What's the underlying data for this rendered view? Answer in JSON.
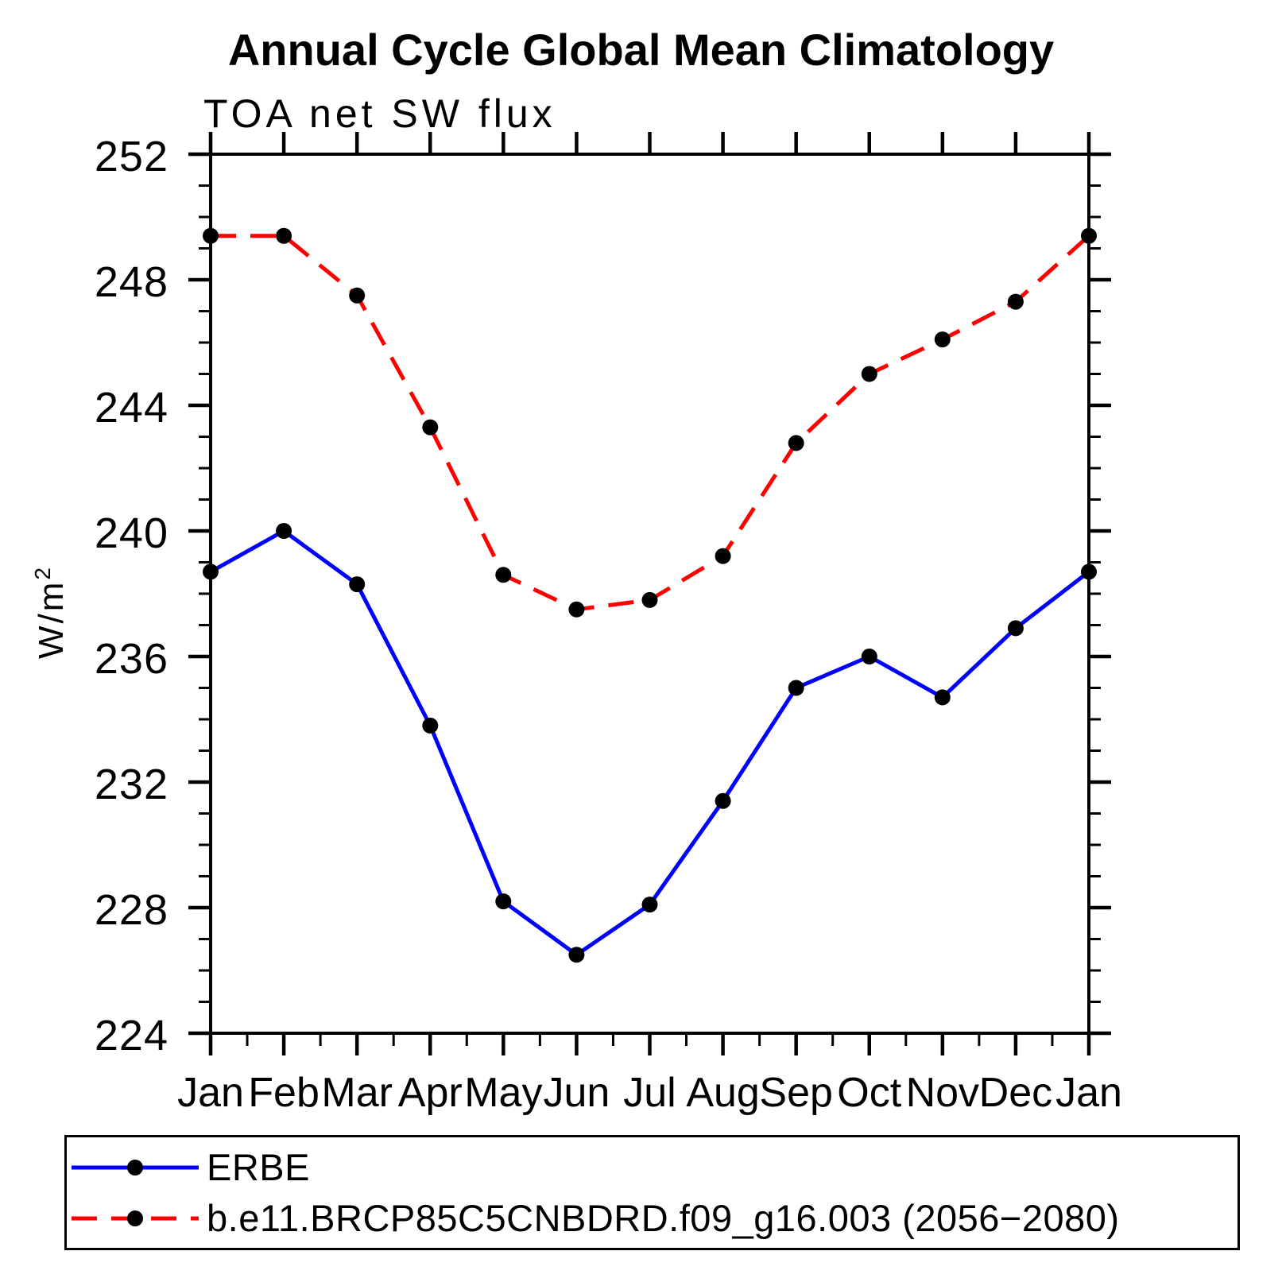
{
  "title": "Annual Cycle Global Mean Climatology",
  "subtitle": "TOA net SW flux",
  "ylabel": "W/m²",
  "ylabel_base": "W/m",
  "ylabel_sup": "2",
  "chart_data": {
    "type": "line",
    "title": "TOA net SW flux",
    "categories": [
      "Jan",
      "Feb",
      "Mar",
      "Apr",
      "May",
      "Jun",
      "Jul",
      "Aug",
      "Sep",
      "Oct",
      "Nov",
      "Dec",
      "Jan"
    ],
    "xlabel": "",
    "ylabel": "W/m²",
    "ylim": [
      224,
      252
    ],
    "ytick_major": 4,
    "ytick_minor": 1,
    "ytick_labels": [
      224,
      228,
      232,
      236,
      240,
      244,
      248,
      252
    ],
    "grid": false,
    "legend_position": "bottom",
    "axis_color": "#000000",
    "marker_color": "#000000",
    "series": [
      {
        "name": "ERBE",
        "color": "#0000ff",
        "style": "solid",
        "marker": "circle",
        "values": [
          238.7,
          240.0,
          238.3,
          233.8,
          228.2,
          226.5,
          228.1,
          231.4,
          235.0,
          236.0,
          234.7,
          236.9,
          238.7
        ]
      },
      {
        "name": "b.e11.BRCP85C5CNBDRD.f09_g16.003 (2056−2080)",
        "color": "#ff0000",
        "style": "dashed",
        "marker": "circle",
        "values": [
          249.4,
          249.4,
          247.5,
          243.3,
          238.6,
          237.5,
          237.8,
          239.2,
          242.8,
          245.0,
          246.1,
          247.3,
          249.4
        ]
      }
    ]
  },
  "legend": {
    "items": [
      {
        "label": "ERBE"
      },
      {
        "label": "b.e11.BRCP85C5CNBDRD.f09_g16.003 (2056−2080)"
      }
    ]
  }
}
